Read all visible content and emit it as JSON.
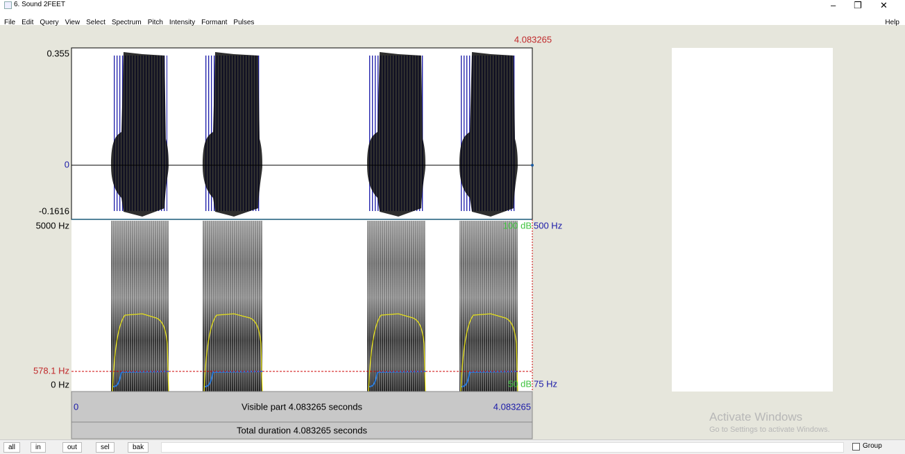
{
  "window": {
    "title": "6. Sound 2FEET"
  },
  "menu": {
    "items": [
      "File",
      "Edit",
      "Query",
      "View",
      "Select",
      "Spectrum",
      "Pitch",
      "Intensity",
      "Formant",
      "Pulses"
    ],
    "help": "Help"
  },
  "editor": {
    "cursor_time": "4.083265",
    "waveform": {
      "max": "0.355",
      "zero": "0",
      "min": "-0.1616"
    },
    "spectrogram": {
      "freq_max": "5000 Hz",
      "freq_min": "0 Hz",
      "cursor_freq": "578.1 Hz",
      "intensity_max": "100 dB",
      "pitch_max": "500 Hz",
      "intensity_min": "50 dB",
      "pitch_min": "75 Hz"
    },
    "visible": {
      "start": "0",
      "label": "Visible part 4.083265 seconds",
      "end": "4.083265"
    },
    "total": "Total duration 4.083265 seconds"
  },
  "toolbar": {
    "buttons": [
      "all",
      "in",
      "out",
      "sel",
      "bak"
    ],
    "group": "Group"
  },
  "watermark": {
    "title": "Activate Windows",
    "subtitle": "Go to Settings to activate Windows."
  }
}
